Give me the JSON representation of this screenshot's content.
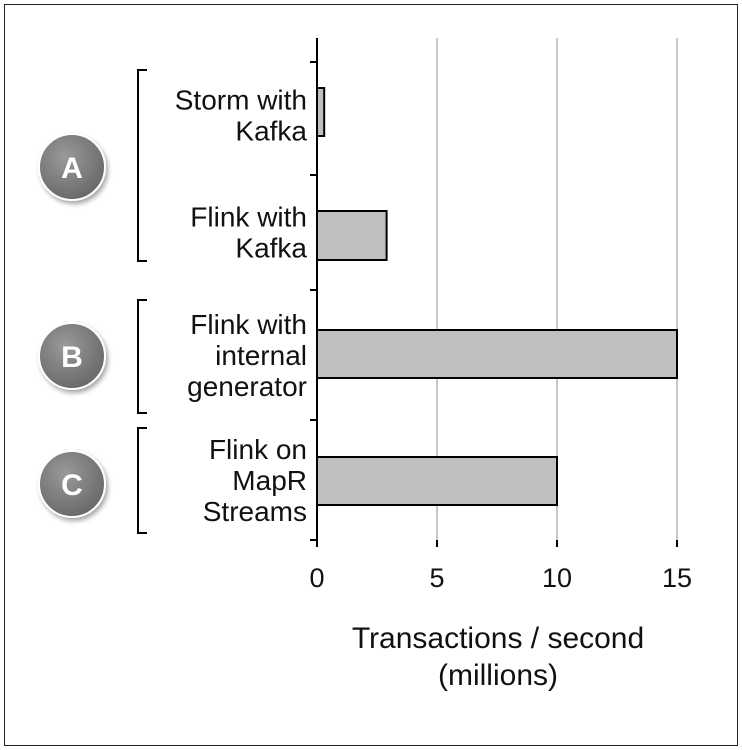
{
  "chart_data": {
    "type": "bar",
    "orientation": "horizontal",
    "categories": [
      [
        "Storm with",
        "Kafka"
      ],
      [
        "Flink with",
        "Kafka"
      ],
      [
        "Flink with",
        "internal",
        "generator"
      ],
      [
        "Flink on",
        "MapR",
        "Streams"
      ]
    ],
    "values": [
      0.3,
      2.9,
      15,
      10
    ],
    "groups": [
      {
        "label": "A",
        "categories": [
          0,
          1
        ]
      },
      {
        "label": "B",
        "categories": [
          2
        ]
      },
      {
        "label": "C",
        "categories": [
          3
        ]
      }
    ],
    "xticks": [
      0,
      5,
      10,
      15
    ],
    "xlim": [
      0,
      15
    ],
    "xlabel": [
      "Transactions / second",
      "(millions)"
    ],
    "grid": "vertical",
    "bar_color": "#bfbfbf",
    "badge_color": "#7a7a7a"
  }
}
